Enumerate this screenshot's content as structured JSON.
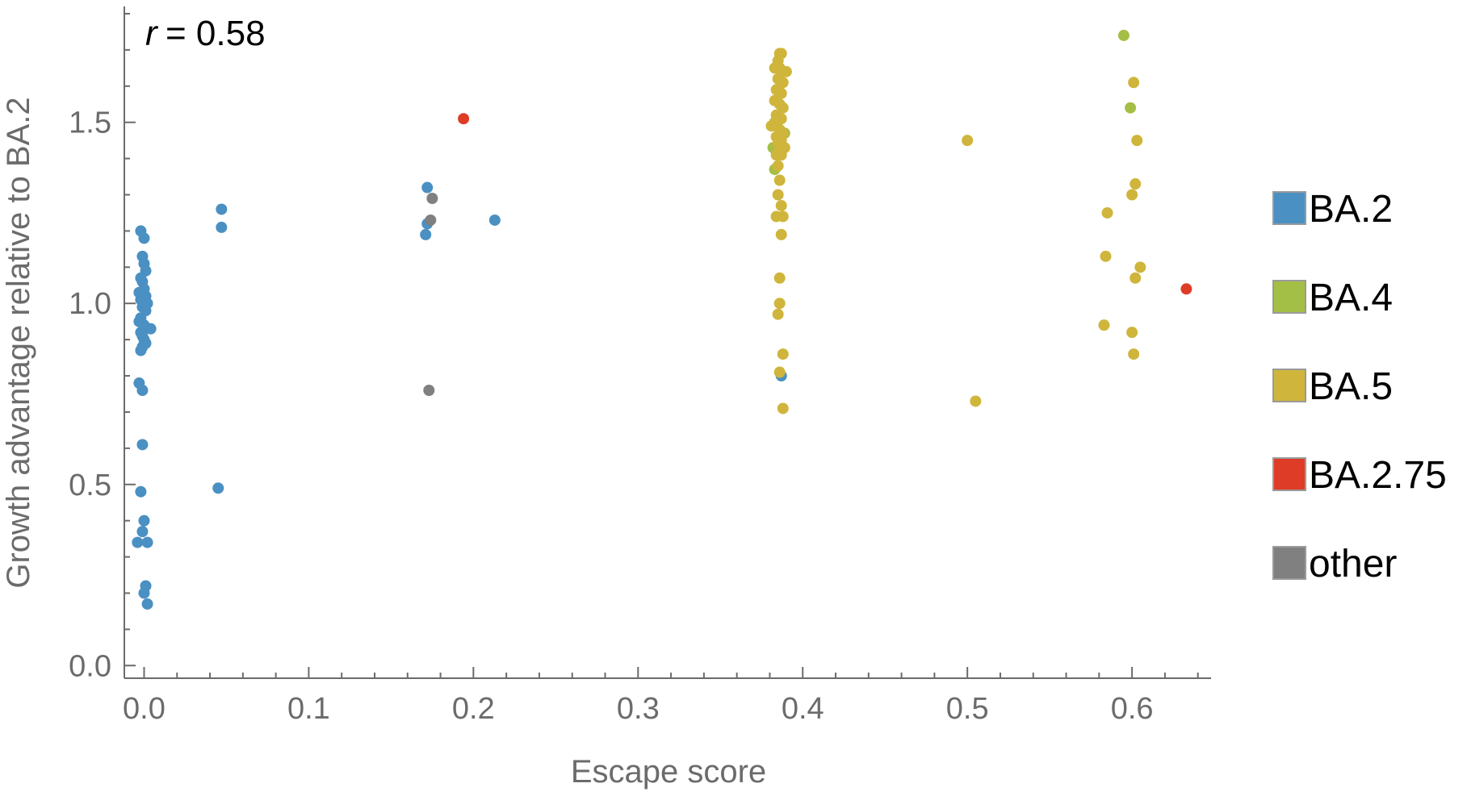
{
  "chart_data": {
    "type": "scatter",
    "xlabel": "Escape score",
    "ylabel": "Growth advantage relative to BA.2",
    "annotation": {
      "symbol": "r",
      "text": " = 0.58"
    },
    "xlim": [
      -0.012,
      0.648
    ],
    "ylim": [
      -0.035,
      1.82
    ],
    "xticks": [
      0.0,
      0.1,
      0.2,
      0.3,
      0.4,
      0.5,
      0.6
    ],
    "xtick_labels": [
      "0.0",
      "0.1",
      "0.2",
      "0.3",
      "0.4",
      "0.5",
      "0.6"
    ],
    "yticks": [
      0.0,
      0.5,
      1.0,
      1.5
    ],
    "ytick_labels": [
      "0.0",
      "0.5",
      "1.0",
      "1.5"
    ],
    "grid": false,
    "legend_position": "right",
    "series": [
      {
        "name": "BA.2",
        "color": "#4a90c2",
        "points": [
          [
            -0.002,
            1.2
          ],
          [
            0.0,
            1.18
          ],
          [
            -0.001,
            1.13
          ],
          [
            0.0,
            1.11
          ],
          [
            0.001,
            1.09
          ],
          [
            -0.002,
            1.07
          ],
          [
            -0.001,
            1.06
          ],
          [
            0.0,
            1.04
          ],
          [
            -0.003,
            1.03
          ],
          [
            0.001,
            1.02
          ],
          [
            -0.002,
            1.01
          ],
          [
            0.0,
            1.0
          ],
          [
            0.002,
            1.0
          ],
          [
            -0.001,
            0.99
          ],
          [
            0.001,
            0.98
          ],
          [
            -0.002,
            0.96
          ],
          [
            -0.003,
            0.95
          ],
          [
            0.0,
            0.94
          ],
          [
            0.004,
            0.93
          ],
          [
            -0.002,
            0.92
          ],
          [
            -0.001,
            0.91
          ],
          [
            0.0,
            0.9
          ],
          [
            0.001,
            0.89
          ],
          [
            -0.001,
            0.88
          ],
          [
            -0.002,
            0.87
          ],
          [
            -0.003,
            0.78
          ],
          [
            -0.001,
            0.76
          ],
          [
            -0.001,
            0.61
          ],
          [
            -0.002,
            0.48
          ],
          [
            0.0,
            0.4
          ],
          [
            -0.001,
            0.37
          ],
          [
            -0.004,
            0.34
          ],
          [
            0.002,
            0.34
          ],
          [
            0.001,
            0.22
          ],
          [
            0.0,
            0.2
          ],
          [
            0.002,
            0.17
          ],
          [
            0.047,
            1.26
          ],
          [
            0.047,
            1.21
          ],
          [
            0.045,
            0.49
          ],
          [
            0.172,
            1.32
          ],
          [
            0.172,
            1.22
          ],
          [
            0.171,
            1.19
          ],
          [
            0.213,
            1.23
          ],
          [
            0.387,
            0.8
          ]
        ]
      },
      {
        "name": "BA.4",
        "color": "#a4bf45",
        "points": [
          [
            0.595,
            1.74
          ],
          [
            0.599,
            1.54
          ],
          [
            0.382,
            1.43
          ],
          [
            0.389,
            1.47
          ],
          [
            0.383,
            1.37
          ]
        ]
      },
      {
        "name": "BA.5",
        "color": "#cfb53b",
        "points": [
          [
            0.386,
            1.69
          ],
          [
            0.387,
            1.69
          ],
          [
            0.385,
            1.67
          ],
          [
            0.386,
            1.65
          ],
          [
            0.383,
            1.65
          ],
          [
            0.387,
            1.64
          ],
          [
            0.39,
            1.64
          ],
          [
            0.385,
            1.62
          ],
          [
            0.388,
            1.61
          ],
          [
            0.384,
            1.59
          ],
          [
            0.387,
            1.58
          ],
          [
            0.383,
            1.56
          ],
          [
            0.386,
            1.55
          ],
          [
            0.388,
            1.54
          ],
          [
            0.384,
            1.52
          ],
          [
            0.387,
            1.51
          ],
          [
            0.383,
            1.5
          ],
          [
            0.381,
            1.49
          ],
          [
            0.386,
            1.48
          ],
          [
            0.388,
            1.47
          ],
          [
            0.384,
            1.46
          ],
          [
            0.387,
            1.45
          ],
          [
            0.385,
            1.44
          ],
          [
            0.389,
            1.43
          ],
          [
            0.386,
            1.42
          ],
          [
            0.384,
            1.41
          ],
          [
            0.387,
            1.41
          ],
          [
            0.385,
            1.38
          ],
          [
            0.386,
            1.34
          ],
          [
            0.385,
            1.3
          ],
          [
            0.387,
            1.27
          ],
          [
            0.388,
            1.24
          ],
          [
            0.384,
            1.24
          ],
          [
            0.387,
            1.19
          ],
          [
            0.386,
            1.07
          ],
          [
            0.386,
            1.0
          ],
          [
            0.385,
            0.97
          ],
          [
            0.388,
            0.86
          ],
          [
            0.386,
            0.81
          ],
          [
            0.388,
            0.71
          ],
          [
            0.5,
            1.45
          ],
          [
            0.505,
            0.73
          ],
          [
            0.601,
            1.61
          ],
          [
            0.603,
            1.45
          ],
          [
            0.602,
            1.33
          ],
          [
            0.6,
            1.3
          ],
          [
            0.585,
            1.25
          ],
          [
            0.584,
            1.13
          ],
          [
            0.605,
            1.1
          ],
          [
            0.602,
            1.07
          ],
          [
            0.583,
            0.94
          ],
          [
            0.6,
            0.92
          ],
          [
            0.601,
            0.86
          ]
        ]
      },
      {
        "name": "BA.2.75",
        "color": "#de3c26",
        "points": [
          [
            0.194,
            1.51
          ],
          [
            0.633,
            1.04
          ]
        ]
      },
      {
        "name": "other",
        "color": "#808080",
        "points": [
          [
            0.175,
            1.29
          ],
          [
            0.174,
            1.23
          ],
          [
            0.173,
            0.76
          ]
        ]
      }
    ]
  }
}
